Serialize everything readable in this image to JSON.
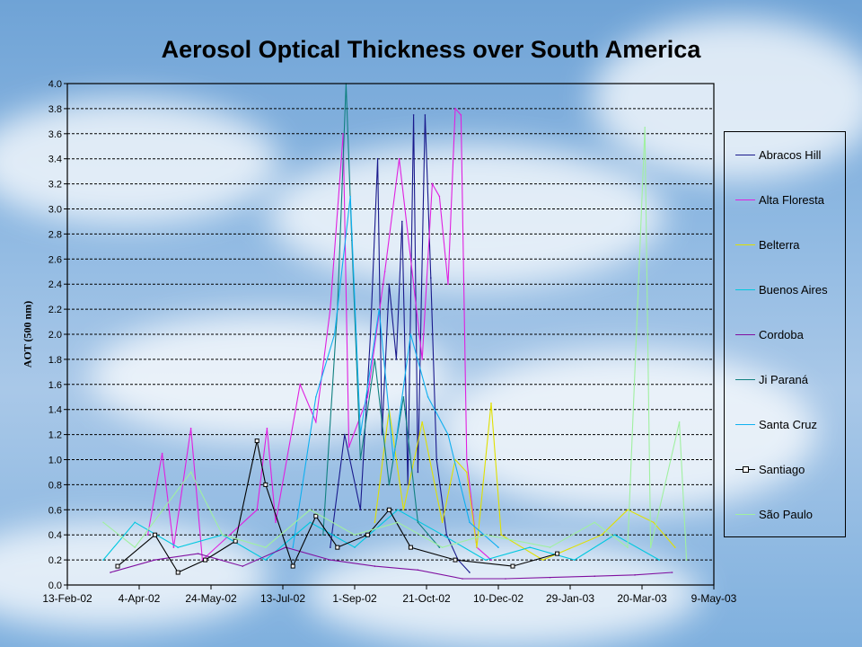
{
  "chart_data": {
    "type": "line",
    "title": "Aerosol Optical Thickness over South America",
    "ylabel": "AOT (500 nm)",
    "xlabel": "",
    "ylim": [
      0,
      4.0
    ],
    "yticks": [
      "0.0",
      "0.2",
      "0.4",
      "0.6",
      "0.8",
      "1.0",
      "1.2",
      "1.4",
      "1.6",
      "1.8",
      "2.0",
      "2.2",
      "2.4",
      "2.6",
      "2.8",
      "3.0",
      "3.2",
      "3.4",
      "3.6",
      "3.8",
      "4.0"
    ],
    "xlim": [
      "2002-02-13",
      "2003-05-09"
    ],
    "xticks": [
      {
        "label": "13-Feb-02",
        "date": "2002-02-13"
      },
      {
        "label": "4-Apr-02",
        "date": "2002-04-04"
      },
      {
        "label": "24-May-02",
        "date": "2002-05-24"
      },
      {
        "label": "13-Jul-02",
        "date": "2002-07-13"
      },
      {
        "label": "1-Sep-02",
        "date": "2002-09-01"
      },
      {
        "label": "21-Oct-02",
        "date": "2002-10-21"
      },
      {
        "label": "10-Dec-02",
        "date": "2002-12-10"
      },
      {
        "label": "29-Jan-03",
        "date": "2003-01-29"
      },
      {
        "label": "20-Mar-03",
        "date": "2003-03-20"
      },
      {
        "label": "9-May-03",
        "date": "2003-05-09"
      }
    ],
    "grid": "horizontal-dashed",
    "legend_position": "right",
    "series": [
      {
        "name": "Abracos Hill",
        "color": "#1a1a8c",
        "marker": "none",
        "points": [
          [
            "2002-08-15",
            0.3
          ],
          [
            "2002-08-25",
            1.2
          ],
          [
            "2002-09-05",
            0.6
          ],
          [
            "2002-09-12",
            2.0
          ],
          [
            "2002-09-17",
            3.4
          ],
          [
            "2002-09-20",
            1.2
          ],
          [
            "2002-09-25",
            2.4
          ],
          [
            "2002-09-30",
            1.8
          ],
          [
            "2002-10-04",
            2.9
          ],
          [
            "2002-10-08",
            0.8
          ],
          [
            "2002-10-12",
            3.75
          ],
          [
            "2002-10-15",
            0.9
          ],
          [
            "2002-10-20",
            3.75
          ],
          [
            "2002-10-24",
            2.45
          ],
          [
            "2002-10-28",
            1.0
          ],
          [
            "2002-11-04",
            0.4
          ],
          [
            "2002-11-12",
            0.2
          ],
          [
            "2002-11-20",
            0.1
          ]
        ]
      },
      {
        "name": "Alta Floresta",
        "color": "#e020e0",
        "marker": "none",
        "points": [
          [
            "2002-04-10",
            0.4
          ],
          [
            "2002-04-20",
            1.05
          ],
          [
            "2002-04-28",
            0.3
          ],
          [
            "2002-05-10",
            1.25
          ],
          [
            "2002-05-18",
            0.2
          ],
          [
            "2002-06-25",
            0.6
          ],
          [
            "2002-07-02",
            1.25
          ],
          [
            "2002-07-08",
            0.5
          ],
          [
            "2002-07-25",
            1.6
          ],
          [
            "2002-08-05",
            1.3
          ],
          [
            "2002-08-15",
            2.2
          ],
          [
            "2002-08-24",
            3.6
          ],
          [
            "2002-08-28",
            1.1
          ],
          [
            "2002-09-10",
            1.5
          ],
          [
            "2002-09-22",
            2.5
          ],
          [
            "2002-10-02",
            3.4
          ],
          [
            "2002-10-06",
            3.0
          ],
          [
            "2002-10-10",
            2.6
          ],
          [
            "2002-10-18",
            1.8
          ],
          [
            "2002-10-25",
            3.2
          ],
          [
            "2002-10-30",
            3.1
          ],
          [
            "2002-11-05",
            2.4
          ],
          [
            "2002-11-10",
            3.8
          ],
          [
            "2002-11-14",
            3.75
          ],
          [
            "2002-11-18",
            1.0
          ],
          [
            "2002-11-25",
            0.3
          ],
          [
            "2002-12-05",
            0.2
          ]
        ]
      },
      {
        "name": "Belterra",
        "color": "#e0e000",
        "marker": "none",
        "points": [
          [
            "2002-09-15",
            0.5
          ],
          [
            "2002-09-25",
            1.4
          ],
          [
            "2002-10-05",
            0.6
          ],
          [
            "2002-10-18",
            1.3
          ],
          [
            "2002-11-01",
            0.5
          ],
          [
            "2002-11-10",
            1.0
          ],
          [
            "2002-11-18",
            0.9
          ],
          [
            "2002-11-25",
            0.3
          ],
          [
            "2002-12-05",
            1.45
          ],
          [
            "2002-12-12",
            0.4
          ],
          [
            "2003-01-10",
            0.2
          ],
          [
            "2003-02-20",
            0.4
          ],
          [
            "2003-03-10",
            0.6
          ],
          [
            "2003-03-28",
            0.5
          ],
          [
            "2003-04-12",
            0.3
          ]
        ]
      },
      {
        "name": "Buenos Aires",
        "color": "#00c8e0",
        "marker": "none",
        "points": [
          [
            "2002-03-10",
            0.2
          ],
          [
            "2002-04-01",
            0.5
          ],
          [
            "2002-05-01",
            0.3
          ],
          [
            "2002-06-01",
            0.4
          ],
          [
            "2002-07-01",
            0.2
          ],
          [
            "2002-08-01",
            0.5
          ],
          [
            "2002-09-01",
            0.3
          ],
          [
            "2002-10-01",
            0.6
          ],
          [
            "2002-11-01",
            0.4
          ],
          [
            "2002-12-01",
            0.2
          ],
          [
            "2003-01-01",
            0.3
          ],
          [
            "2003-02-01",
            0.2
          ],
          [
            "2003-03-01",
            0.4
          ],
          [
            "2003-04-01",
            0.2
          ]
        ]
      },
      {
        "name": "Cordoba",
        "color": "#8010a0",
        "marker": "none",
        "points": [
          [
            "2002-03-15",
            0.1
          ],
          [
            "2002-04-15",
            0.2
          ],
          [
            "2002-05-15",
            0.25
          ],
          [
            "2002-06-15",
            0.15
          ],
          [
            "2002-07-15",
            0.3
          ],
          [
            "2002-08-15",
            0.2
          ],
          [
            "2002-09-15",
            0.15
          ],
          [
            "2002-10-15",
            0.12
          ],
          [
            "2002-11-15",
            0.05
          ],
          [
            "2002-12-15",
            0.05
          ],
          [
            "2003-01-15",
            0.06
          ],
          [
            "2003-02-15",
            0.07
          ],
          [
            "2003-03-15",
            0.08
          ],
          [
            "2003-04-10",
            0.1
          ]
        ]
      },
      {
        "name": "Ji Paraná",
        "color": "#108080",
        "marker": "none",
        "points": [
          [
            "2002-08-10",
            0.4
          ],
          [
            "2002-08-20",
            2.2
          ],
          [
            "2002-08-26",
            4.0
          ],
          [
            "2002-08-30",
            2.75
          ],
          [
            "2002-09-05",
            1.0
          ],
          [
            "2002-09-15",
            1.8
          ],
          [
            "2002-09-25",
            0.8
          ],
          [
            "2002-10-05",
            1.5
          ],
          [
            "2002-10-15",
            0.5
          ],
          [
            "2002-10-30",
            0.3
          ]
        ]
      },
      {
        "name": "Santa Cruz",
        "color": "#10b0f0",
        "marker": "none",
        "points": [
          [
            "2002-07-20",
            0.3
          ],
          [
            "2002-08-05",
            1.5
          ],
          [
            "2002-08-18",
            2.0
          ],
          [
            "2002-08-29",
            3.1
          ],
          [
            "2002-09-05",
            1.2
          ],
          [
            "2002-09-18",
            2.2
          ],
          [
            "2002-09-28",
            1.0
          ],
          [
            "2002-10-10",
            2.0
          ],
          [
            "2002-10-22",
            1.5
          ],
          [
            "2002-11-05",
            1.2
          ],
          [
            "2002-11-20",
            0.5
          ],
          [
            "2002-12-10",
            0.3
          ]
        ]
      },
      {
        "name": "Santiago",
        "color": "#000000",
        "marker": "square",
        "points": [
          [
            "2002-03-20",
            0.15
          ],
          [
            "2002-04-15",
            0.4
          ],
          [
            "2002-05-01",
            0.1
          ],
          [
            "2002-05-20",
            0.2
          ],
          [
            "2002-06-10",
            0.35
          ],
          [
            "2002-06-25",
            1.15
          ],
          [
            "2002-07-01",
            0.8
          ],
          [
            "2002-07-20",
            0.15
          ],
          [
            "2002-08-05",
            0.55
          ],
          [
            "2002-08-20",
            0.3
          ],
          [
            "2002-09-10",
            0.4
          ],
          [
            "2002-09-25",
            0.6
          ],
          [
            "2002-10-10",
            0.3
          ],
          [
            "2002-11-10",
            0.2
          ],
          [
            "2002-12-20",
            0.15
          ],
          [
            "2003-01-20",
            0.25
          ]
        ]
      },
      {
        "name": "São Paulo",
        "color": "#a0f0a0",
        "marker": "none",
        "points": [
          [
            "2002-03-10",
            0.5
          ],
          [
            "2002-04-01",
            0.3
          ],
          [
            "2002-05-10",
            0.9
          ],
          [
            "2002-06-01",
            0.4
          ],
          [
            "2002-07-01",
            0.3
          ],
          [
            "2002-08-01",
            0.6
          ],
          [
            "2002-09-01",
            0.4
          ],
          [
            "2002-10-01",
            0.5
          ],
          [
            "2002-11-01",
            0.3
          ],
          [
            "2002-12-01",
            0.4
          ],
          [
            "2003-01-15",
            0.3
          ],
          [
            "2003-02-15",
            0.5
          ],
          [
            "2003-03-10",
            0.3
          ],
          [
            "2003-03-22",
            3.65
          ],
          [
            "2003-03-26",
            0.3
          ],
          [
            "2003-04-15",
            1.3
          ],
          [
            "2003-04-20",
            0.2
          ]
        ]
      }
    ]
  }
}
